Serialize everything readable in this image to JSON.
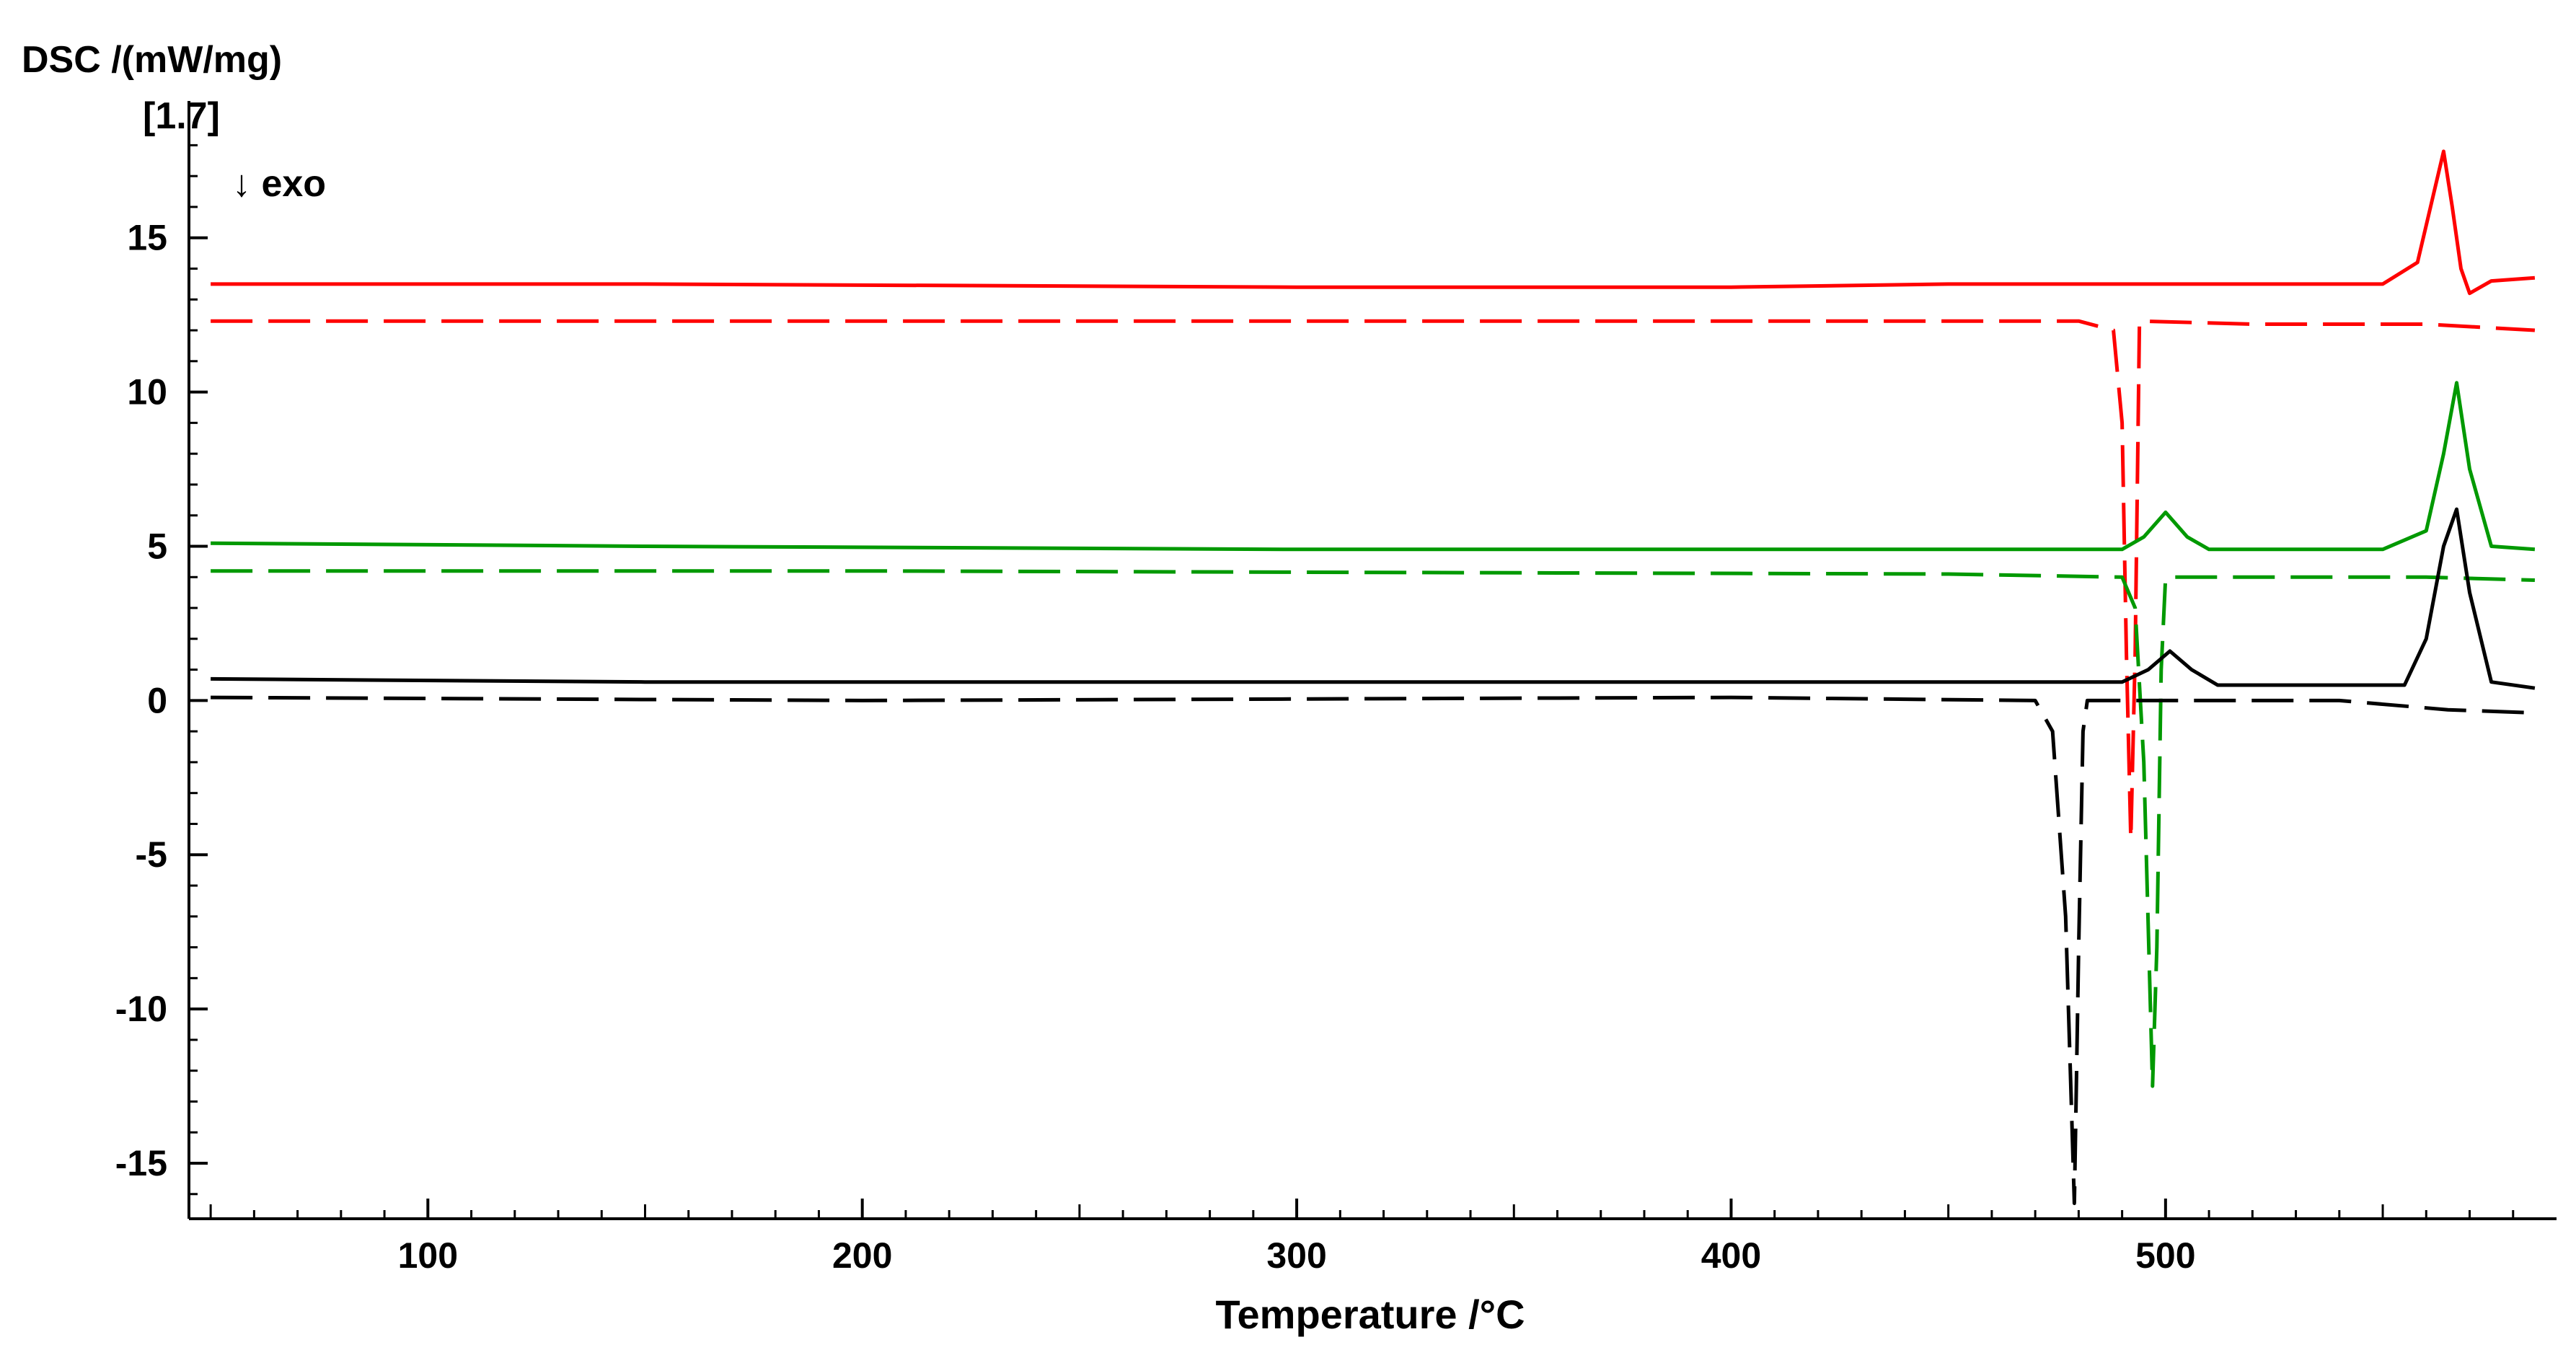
{
  "chart_data": {
    "type": "line",
    "ylabel": "DSC /(mW/mg)",
    "ylabel_sub": "[1.7]",
    "annotation": "↓ exo",
    "xlabel": "Temperature /°C",
    "xlim": [
      45,
      590
    ],
    "ylim": [
      -16.8,
      18.5
    ],
    "xticks": [
      100,
      200,
      300,
      400,
      500
    ],
    "yticks": [
      15,
      10,
      5,
      0,
      -5,
      -10,
      -15
    ],
    "grid": false,
    "series": [
      {
        "color": "#ff0000",
        "dash": "solid",
        "x": [
          50,
          150,
          300,
          400,
          450,
          550,
          558,
          561,
          564,
          566,
          568,
          570,
          575,
          585
        ],
        "y": [
          13.5,
          13.5,
          13.4,
          13.4,
          13.5,
          13.5,
          14.2,
          16.0,
          17.8,
          16.0,
          14.0,
          13.2,
          13.6,
          13.7
        ]
      },
      {
        "color": "#ff0000",
        "dash": "dashed",
        "x": [
          50,
          200,
          480,
          488,
          490,
          491,
          492,
          493,
          494,
          520,
          560,
          585
        ],
        "y": [
          12.3,
          12.3,
          12.3,
          12.0,
          9.0,
          1.5,
          -4.5,
          1.5,
          12.3,
          12.2,
          12.2,
          12.0
        ]
      },
      {
        "color": "#009900",
        "dash": "solid",
        "x": [
          50,
          150,
          300,
          400,
          490,
          495,
          500,
          505,
          510,
          550,
          560,
          564,
          567,
          570,
          575,
          585
        ],
        "y": [
          5.1,
          5.0,
          4.9,
          4.9,
          4.9,
          5.3,
          6.1,
          5.3,
          4.9,
          4.9,
          5.5,
          8.0,
          10.3,
          7.5,
          5.0,
          4.9
        ]
      },
      {
        "color": "#009900",
        "dash": "dashed",
        "x": [
          50,
          200,
          450,
          490,
          493,
          495,
          497,
          498,
          499,
          500,
          520,
          560,
          585
        ],
        "y": [
          4.2,
          4.2,
          4.1,
          4.0,
          3.0,
          -2.0,
          -12.5,
          -8.0,
          1.0,
          4.0,
          4.0,
          4.0,
          3.9
        ]
      },
      {
        "color": "#000000",
        "dash": "solid",
        "x": [
          50,
          150,
          300,
          400,
          490,
          496,
          501,
          506,
          512,
          555,
          560,
          564,
          567,
          570,
          575,
          585
        ],
        "y": [
          0.7,
          0.6,
          0.6,
          0.6,
          0.6,
          1.0,
          1.6,
          1.0,
          0.5,
          0.5,
          2.0,
          5.0,
          6.2,
          3.5,
          0.6,
          0.4
        ]
      },
      {
        "color": "#000000",
        "dash": "dashed",
        "x": [
          50,
          200,
          400,
          470,
          474,
          477,
          479,
          480,
          481,
          482,
          500,
          540,
          565,
          585
        ],
        "y": [
          0.1,
          0.0,
          0.1,
          0.0,
          -1.0,
          -7.0,
          -16.3,
          -8.0,
          -1.0,
          0.0,
          0.0,
          0.0,
          -0.3,
          -0.4
        ]
      }
    ]
  }
}
